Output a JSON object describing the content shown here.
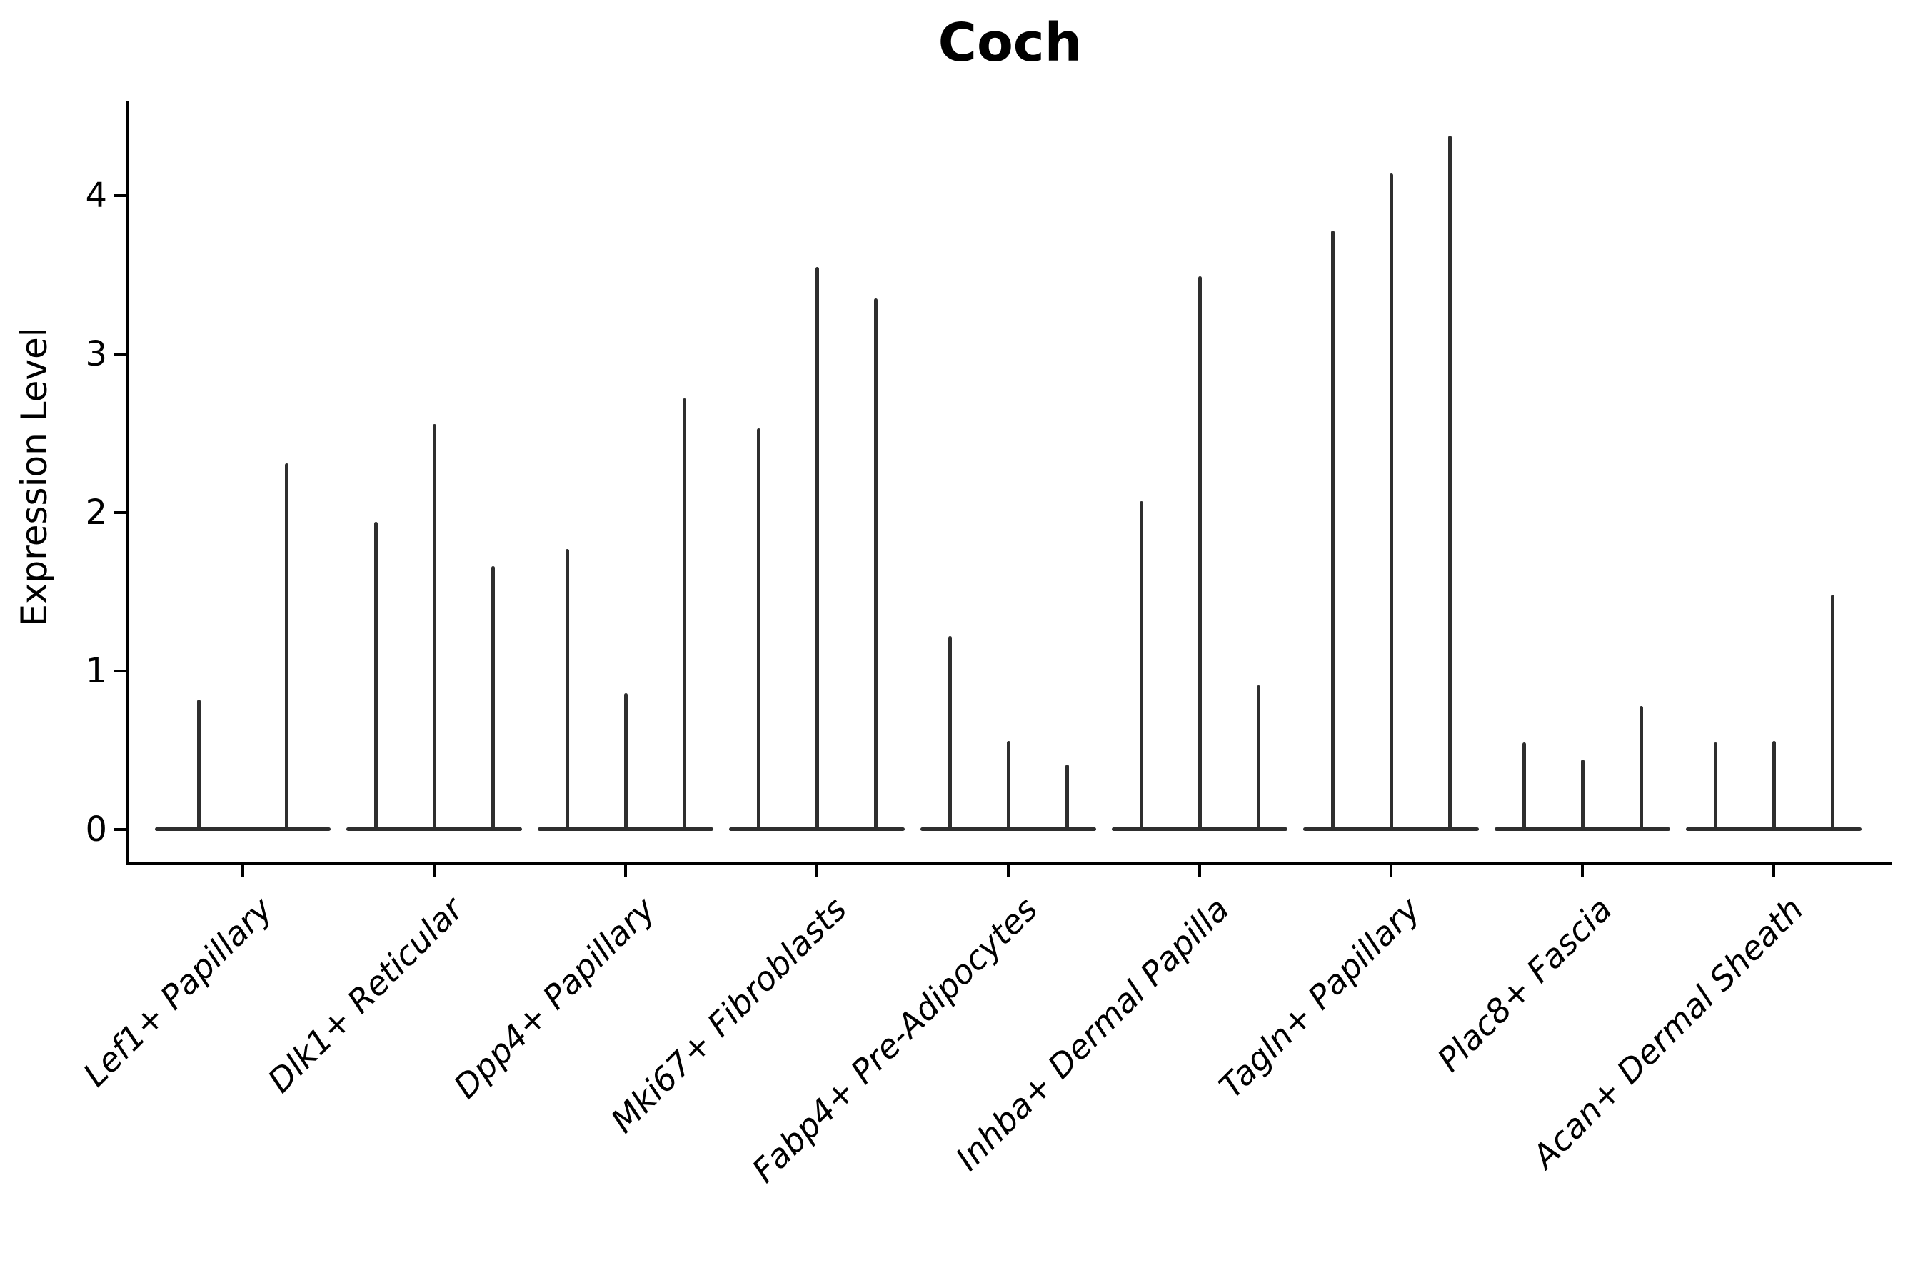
{
  "chart_data": {
    "type": "violin",
    "title": "Coch",
    "ylabel": "Expression Level",
    "xlabel": "",
    "ytick_labels": [
      "0",
      "1",
      "2",
      "3",
      "4"
    ],
    "ytick_values": [
      0,
      1,
      2,
      3,
      4
    ],
    "ylim": [
      -0.2,
      4.6
    ],
    "grid": false,
    "legend": "none",
    "categories": [
      "Lef1+ Papillary",
      "Dlk1+ Reticular",
      "Dpp4+ Papillary",
      "Mki67+ Fibroblasts",
      "Fabp4+ Pre-Adipocytes",
      "Inhba+ Dermal Papilla",
      "Tagln+ Papillary",
      "Plac8+ Fascia",
      "Acan+ Dermal Sheath"
    ],
    "series_note": "thin violins, essentially vertical spikes from 0 to max expression; per-category spike maxima listed left-to-right",
    "violin_max_values": [
      [
        0.82,
        2.31
      ],
      [
        1.94,
        2.56,
        1.66
      ],
      [
        1.77,
        0.86,
        2.72
      ],
      [
        2.53,
        3.55,
        3.35
      ],
      [
        1.22,
        0.56,
        0.41
      ],
      [
        2.07,
        3.49,
        0.91
      ],
      [
        3.78,
        4.14,
        4.38
      ],
      [
        0.55,
        0.44,
        0.78
      ],
      [
        0.55,
        0.56,
        1.48
      ]
    ]
  },
  "colors": {
    "violin_line": "#2e2e2e",
    "axis": "#000000",
    "text": "#000000",
    "background": "#ffffff"
  }
}
